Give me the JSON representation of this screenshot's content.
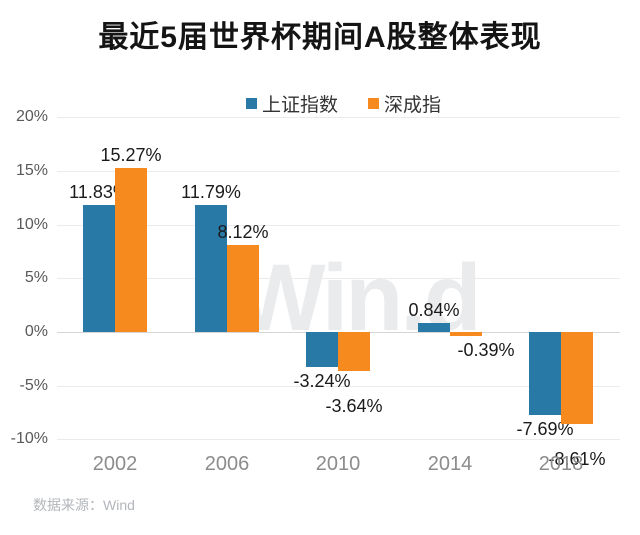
{
  "title": "最近5届世界杯期间A股整体表现",
  "legend": {
    "items": [
      {
        "label": "上证指数",
        "color": "#2879A5"
      },
      {
        "label": "深成指",
        "color": "#F68A1E"
      }
    ]
  },
  "chart_data": {
    "type": "bar",
    "categories": [
      "2002",
      "2006",
      "2010",
      "2014",
      "2018"
    ],
    "series": [
      {
        "name": "上证指数",
        "color": "#2879A5",
        "values": [
          11.83,
          11.79,
          -3.24,
          0.84,
          -7.69
        ],
        "labels": [
          "11.83%",
          "11.79%",
          "-3.24%",
          "0.84%",
          "-7.69%"
        ]
      },
      {
        "name": "深成指",
        "color": "#F68A1E",
        "values": [
          15.27,
          8.12,
          -3.64,
          -0.39,
          -8.61
        ],
        "labels": [
          "15.27%",
          "8.12%",
          "-3.64%",
          "-0.39%",
          "-8.61%"
        ]
      }
    ],
    "title": "最近5届世界杯期间A股整体表现",
    "xlabel": "",
    "ylabel": "",
    "ylim": [
      -10,
      20
    ],
    "y_ticks": [
      "20%",
      "15%",
      "10%",
      "5%",
      "0%",
      "-5%",
      "-10%"
    ],
    "y_tick_values": [
      20,
      15,
      10,
      5,
      0,
      -5,
      -10
    ],
    "grid": true,
    "legend_position": "top",
    "data_labels": true
  },
  "watermark": "Win.d",
  "source": "数据来源：Wind"
}
